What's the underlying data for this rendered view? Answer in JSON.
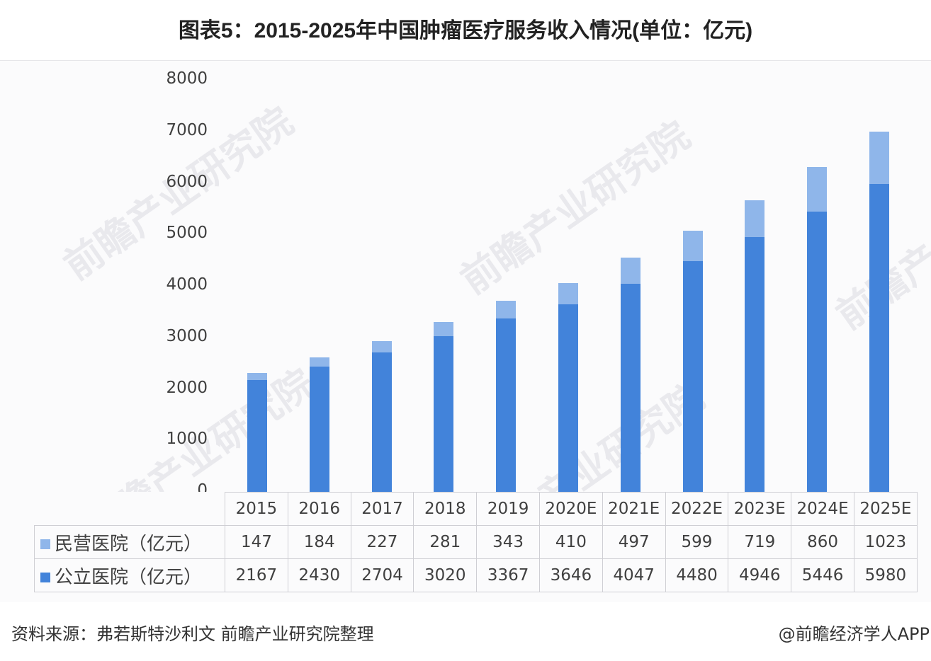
{
  "title": "图表5：2015-2025年中国肿瘤医疗服务收入情况(单位：亿元)",
  "footer": {
    "source": "资料来源：弗若斯特沙利文 前瞻产业研究院整理",
    "credit": "@前瞻经济学人APP"
  },
  "watermark": "前瞻产业研究院",
  "colors": {
    "private": "#8fb6ea",
    "public": "#4283da"
  },
  "yaxis": {
    "ticks": [
      "8000",
      "7000",
      "6000",
      "5000",
      "4000",
      "3000",
      "2000",
      "1000",
      "0"
    ]
  },
  "table": {
    "headers": [
      "2015",
      "2016",
      "2017",
      "2018",
      "2019",
      "2020E",
      "2021E",
      "2022E",
      "2023E",
      "2024E",
      "2025E"
    ],
    "rows": [
      {
        "label": "民营医院（亿元）",
        "values": [
          "147",
          "184",
          "227",
          "281",
          "343",
          "410",
          "497",
          "599",
          "719",
          "860",
          "1023"
        ]
      },
      {
        "label": "公立医院（亿元）",
        "values": [
          "2167",
          "2430",
          "2704",
          "3020",
          "3367",
          "3646",
          "4047",
          "4480",
          "4946",
          "5446",
          "5980"
        ]
      }
    ]
  },
  "chart_data": {
    "type": "bar",
    "stacked": true,
    "title": "图表5：2015-2025年中国肿瘤医疗服务收入情况(单位：亿元)",
    "xlabel": "",
    "ylabel": "",
    "ylim": [
      0,
      8000
    ],
    "yticks": [
      0,
      1000,
      2000,
      3000,
      4000,
      5000,
      6000,
      7000,
      8000
    ],
    "grid": false,
    "legend_position": "data table (left of rows)",
    "categories": [
      "2015",
      "2016",
      "2017",
      "2018",
      "2019",
      "2020E",
      "2021E",
      "2022E",
      "2023E",
      "2024E",
      "2025E"
    ],
    "series": [
      {
        "name": "公立医院（亿元）",
        "color": "#4283da",
        "values": [
          2167,
          2430,
          2704,
          3020,
          3367,
          3646,
          4047,
          4480,
          4946,
          5446,
          5980
        ]
      },
      {
        "name": "民营医院（亿元）",
        "color": "#8fb6ea",
        "values": [
          147,
          184,
          227,
          281,
          343,
          410,
          497,
          599,
          719,
          860,
          1023
        ]
      }
    ],
    "source": "资料来源：弗若斯特沙利文 前瞻产业研究院整理"
  }
}
